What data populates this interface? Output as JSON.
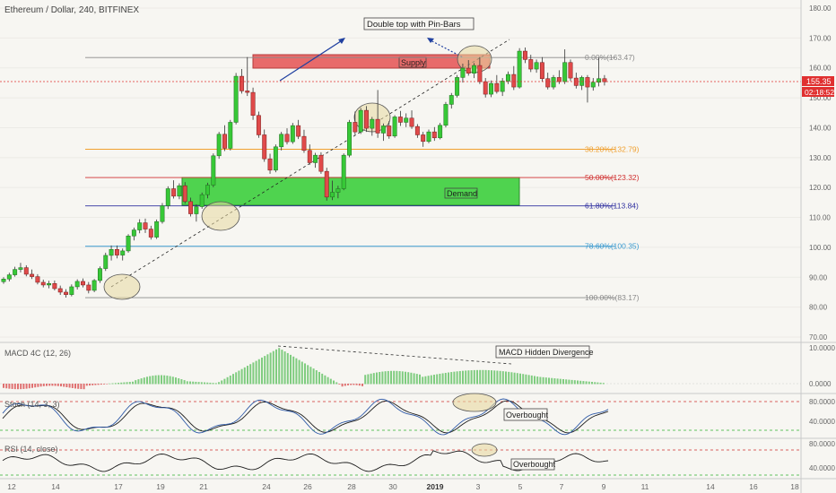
{
  "header": {
    "symbol_title": "Ethereum / Dollar, 240, BITFINEX"
  },
  "colors": {
    "background": "#f7f6f2",
    "bull": "#37c837",
    "bear": "#e04a4a",
    "bull_dark": "#1f6d1f",
    "bear_dark": "#7a1a1a",
    "supply_zone": "#e86a6a",
    "demand_zone": "#4fd34f",
    "current_price": "#e03030",
    "macd_pos": "#7fcc7f",
    "macd_neg": "#e07070",
    "stoch_k": "#2f5aa8",
    "stoch_d": "#1d1d1d",
    "rsi_line": "#1d1d1d"
  },
  "main_pane": {
    "price_axis": [
      "180.00",
      "170.00",
      "160.00",
      "150.00",
      "140.00",
      "130.00",
      "120.00",
      "110.00",
      "100.00",
      "90.00",
      "80.00",
      "70.00"
    ],
    "current_price": "155.35",
    "countdown": "02:18:52",
    "fib_levels": [
      {
        "label": "0.00%(163.47)",
        "price": 163.47,
        "color": "#8a8a8a"
      },
      {
        "label": "38.20%(132.79)",
        "price": 132.79,
        "color": "#f0a030"
      },
      {
        "label": "50.00%(123.32)",
        "price": 123.32,
        "color": "#d03030"
      },
      {
        "label": "61.80%(113.84)",
        "price": 113.84,
        "color": "#3030a0"
      },
      {
        "label": "78.60%(100.35)",
        "price": 100.35,
        "color": "#3a9ad0"
      },
      {
        "label": "100.00%(83.17)",
        "price": 83.17,
        "color": "#8a8a8a"
      }
    ],
    "supply_label": "Supply",
    "demand_label": "Demand",
    "annotation_double_top": "Double top with Pin-Bars"
  },
  "macd_pane": {
    "title": "MACD 4C (12, 26)",
    "axis": [
      "10.0000",
      "0.0000"
    ],
    "annotation": "MACD Hidden Divergence"
  },
  "stoch_pane": {
    "title": "Stoch (14, 3, 3)",
    "axis": [
      "80.0000",
      "40.0000"
    ],
    "annotation": "Overbought"
  },
  "rsi_pane": {
    "title": "RSI (14, close)",
    "axis": [
      "80.0000",
      "40.0000"
    ],
    "annotation": "Overbought"
  },
  "time_axis": [
    "12",
    "14",
    "17",
    "19",
    "21",
    "24",
    "26",
    "28",
    "30",
    "2019",
    "3",
    "5",
    "7",
    "9",
    "11",
    "14",
    "16",
    "18"
  ],
  "chart_data": {
    "type": "candlestick",
    "title": "Ethereum / Dollar, 240, BITFINEX",
    "ylim": [
      70,
      180
    ],
    "candles": [
      [
        88.5,
        90.0,
        87.8,
        89.4
      ],
      [
        89.4,
        91.5,
        88.6,
        90.8
      ],
      [
        90.8,
        93.5,
        90.2,
        92.6
      ],
      [
        92.6,
        94.8,
        91.6,
        93.2
      ],
      [
        93.2,
        94.0,
        90.3,
        91.0
      ],
      [
        91.0,
        92.6,
        89.4,
        90.2
      ],
      [
        90.2,
        91.0,
        87.6,
        88.3
      ],
      [
        88.3,
        89.2,
        86.6,
        87.4
      ],
      [
        87.4,
        88.8,
        86.3,
        87.9
      ],
      [
        87.9,
        88.9,
        85.6,
        86.2
      ],
      [
        86.2,
        87.2,
        84.1,
        85.0
      ],
      [
        85.0,
        86.0,
        83.2,
        84.2
      ],
      [
        84.2,
        87.6,
        83.6,
        86.8
      ],
      [
        86.8,
        89.3,
        85.9,
        88.6
      ],
      [
        88.6,
        89.6,
        86.6,
        87.4
      ],
      [
        87.4,
        88.4,
        84.6,
        85.6
      ],
      [
        85.6,
        89.4,
        85.0,
        88.9
      ],
      [
        88.9,
        93.6,
        88.1,
        92.9
      ],
      [
        92.9,
        98.2,
        92.1,
        97.3
      ],
      [
        97.3,
        100.6,
        95.6,
        99.3
      ],
      [
        99.3,
        100.6,
        96.3,
        97.4
      ],
      [
        97.4,
        99.6,
        95.6,
        98.8
      ],
      [
        98.8,
        104.4,
        98.2,
        103.8
      ],
      [
        103.8,
        106.6,
        102.3,
        105.8
      ],
      [
        105.8,
        109.4,
        104.7,
        108.2
      ],
      [
        108.2,
        109.6,
        104.8,
        106.1
      ],
      [
        106.1,
        107.2,
        102.6,
        103.4
      ],
      [
        103.4,
        109.3,
        102.8,
        108.6
      ],
      [
        108.6,
        114.8,
        107.9,
        113.9
      ],
      [
        113.9,
        120.4,
        112.8,
        119.6
      ],
      [
        119.6,
        122.4,
        116.3,
        117.1
      ],
      [
        117.1,
        121.4,
        116.1,
        120.6
      ],
      [
        120.6,
        121.8,
        114.6,
        115.3
      ],
      [
        115.3,
        116.6,
        110.3,
        111.2
      ],
      [
        111.2,
        114.4,
        108.6,
        113.6
      ],
      [
        113.6,
        118.3,
        112.9,
        117.6
      ],
      [
        117.6,
        121.6,
        116.4,
        120.8
      ],
      [
        120.8,
        131.4,
        120.1,
        130.6
      ],
      [
        130.6,
        138.6,
        129.6,
        137.8
      ],
      [
        137.8,
        140.8,
        132.2,
        133.1
      ],
      [
        133.1,
        142.6,
        132.4,
        141.8
      ],
      [
        141.8,
        158.3,
        141.1,
        157.2
      ],
      [
        157.2,
        159.6,
        151.4,
        152.3
      ],
      [
        152.3,
        163.6,
        150.6,
        151.8
      ],
      [
        151.8,
        153.4,
        142.6,
        144.1
      ],
      [
        144.1,
        145.4,
        136.6,
        137.6
      ],
      [
        137.6,
        139.4,
        128.6,
        129.6
      ],
      [
        129.6,
        131.3,
        124.6,
        125.8
      ],
      [
        125.8,
        134.4,
        125.1,
        133.6
      ],
      [
        133.6,
        138.6,
        132.4,
        137.8
      ],
      [
        137.8,
        139.8,
        134.4,
        135.3
      ],
      [
        135.3,
        141.6,
        134.6,
        140.7
      ],
      [
        140.7,
        142.6,
        136.2,
        137.1
      ],
      [
        137.1,
        139.3,
        131.6,
        132.4
      ],
      [
        132.4,
        134.4,
        127.6,
        128.3
      ],
      [
        128.3,
        131.6,
        126.6,
        130.8
      ],
      [
        130.8,
        131.8,
        124.6,
        125.4
      ],
      [
        125.4,
        126.6,
        115.6,
        116.8
      ],
      [
        116.8,
        122.3,
        115.8,
        118.4
      ],
      [
        118.4,
        120.6,
        116.4,
        119.6
      ],
      [
        119.6,
        131.4,
        119.1,
        130.8
      ],
      [
        130.8,
        142.6,
        130.1,
        141.8
      ],
      [
        141.8,
        145.4,
        137.6,
        138.6
      ],
      [
        138.6,
        146.6,
        137.9,
        145.8
      ],
      [
        145.8,
        147.2,
        138.6,
        139.8
      ],
      [
        139.8,
        143.6,
        137.3,
        142.8
      ],
      [
        142.8,
        152.6,
        136.6,
        138.2
      ],
      [
        138.2,
        141.4,
        135.6,
        140.6
      ],
      [
        140.6,
        142.2,
        136.3,
        137.2
      ],
      [
        137.2,
        144.2,
        136.6,
        143.6
      ],
      [
        143.6,
        145.6,
        140.6,
        141.8
      ],
      [
        141.8,
        144.8,
        140.2,
        143.2
      ],
      [
        143.2,
        145.8,
        139.6,
        140.4
      ],
      [
        140.4,
        141.2,
        136.6,
        137.6
      ],
      [
        137.6,
        138.6,
        133.6,
        135.4
      ],
      [
        135.4,
        139.4,
        134.8,
        138.6
      ],
      [
        138.6,
        140.2,
        135.6,
        136.6
      ],
      [
        136.6,
        141.6,
        136.1,
        140.8
      ],
      [
        140.8,
        148.6,
        140.1,
        147.8
      ],
      [
        147.8,
        151.6,
        146.4,
        150.8
      ],
      [
        150.8,
        157.6,
        150.1,
        156.8
      ],
      [
        156.8,
        161.4,
        155.1,
        159.9
      ],
      [
        159.9,
        162.6,
        157.4,
        158.2
      ],
      [
        158.2,
        161.6,
        156.6,
        160.8
      ],
      [
        160.8,
        163.6,
        154.6,
        155.4
      ],
      [
        155.4,
        156.6,
        150.1,
        151.2
      ],
      [
        151.2,
        155.8,
        150.2,
        154.8
      ],
      [
        154.8,
        157.6,
        151.4,
        152.1
      ],
      [
        152.1,
        156.6,
        150.6,
        155.6
      ],
      [
        155.6,
        158.8,
        154.6,
        157.8
      ],
      [
        157.8,
        160.6,
        152.6,
        153.6
      ],
      [
        153.6,
        166.6,
        153.1,
        165.6
      ],
      [
        165.6,
        166.8,
        161.6,
        162.8
      ],
      [
        162.8,
        164.4,
        158.6,
        159.6
      ],
      [
        159.6,
        162.8,
        158.4,
        161.8
      ],
      [
        161.8,
        163.6,
        155.4,
        156.4
      ],
      [
        156.4,
        158.4,
        152.8,
        153.6
      ],
      [
        153.6,
        157.6,
        152.8,
        156.8
      ],
      [
        156.8,
        159.2,
        154.6,
        155.4
      ],
      [
        155.4,
        166.2,
        154.6,
        161.8
      ],
      [
        161.8,
        162.8,
        155.6,
        156.6
      ],
      [
        156.6,
        158.4,
        153.1,
        154.1
      ],
      [
        154.1,
        157.4,
        152.6,
        156.8
      ],
      [
        156.8,
        157.6,
        148.4,
        153.6
      ],
      [
        153.6,
        156.6,
        152.4,
        155.2
      ],
      [
        155.2,
        163.4,
        153.8,
        156.4
      ],
      [
        156.4,
        157.6,
        154.1,
        155.35
      ]
    ]
  }
}
